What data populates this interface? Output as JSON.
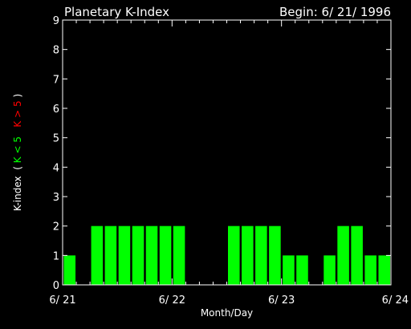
{
  "chart_data": {
    "type": "bar",
    "title": "Planetary K-Index",
    "subtitle": "Begin: 6/ 21/ 1996",
    "xlabel": "Month/Day",
    "ylabel": {
      "main": "K-index",
      "legend_open": "(",
      "low_label": "K < 5",
      "high_label": "K > 5",
      "legend_close": ")"
    },
    "ylim": [
      0,
      9
    ],
    "yticks": [
      "0",
      "1",
      "2",
      "3",
      "4",
      "5",
      "6",
      "7",
      "8",
      "9"
    ],
    "xlim": [
      0,
      24
    ],
    "xticks": [
      {
        "x": 0,
        "label": "6/ 21"
      },
      {
        "x": 8,
        "label": "6/ 22"
      },
      {
        "x": 16,
        "label": "6/ 23"
      },
      {
        "x": 24,
        "label": "6/ 24"
      }
    ],
    "interval_hours": 3,
    "values": [
      1,
      0,
      2,
      2,
      2,
      2,
      2,
      2,
      2,
      0,
      0,
      0,
      2,
      2,
      2,
      2,
      1,
      1,
      0,
      1,
      2,
      2,
      1,
      1
    ],
    "threshold": 5,
    "colors": {
      "background": "#000000",
      "axes": "#ffffff",
      "bar_low": "#00ff00",
      "bar_high": "#ff0000",
      "text": "#ffffff",
      "legend_low": "#00ff00",
      "legend_high": "#ff0000"
    }
  }
}
